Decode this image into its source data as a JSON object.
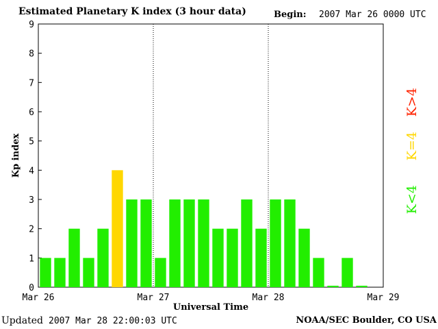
{
  "header": {
    "title": "Estimated Planetary K index (3 hour data)",
    "begin_label": "Begin:",
    "begin_value": "2007 Mar 26 0000 UTC"
  },
  "footer": {
    "updated_label": "Updated",
    "updated_value": "2007 Mar 28 22:00:03 UTC",
    "source": "NOAA/SEC Boulder, CO USA"
  },
  "legend": {
    "gt4": "K>4",
    "eq4": "K=4",
    "lt4": "K<4"
  },
  "colors": {
    "lt4": "#22ee00",
    "eq4": "#ffd700",
    "gt4": "#ff2200"
  },
  "chart_data": {
    "type": "bar",
    "title": "Estimated Planetary K index (3 hour data)",
    "xlabel": "Universal Time",
    "ylabel": "Kp index",
    "ylim": [
      0,
      9
    ],
    "yticks": [
      "0",
      "1",
      "2",
      "3",
      "4",
      "5",
      "6",
      "7",
      "8",
      "9"
    ],
    "xticks": [
      "Mar 26",
      "Mar 27",
      "Mar 28",
      "Mar 29"
    ],
    "day_separators": [
      "Mar 27",
      "Mar 28"
    ],
    "interval_hours": 3,
    "values": [
      1,
      1,
      2,
      1,
      2,
      4,
      3,
      3,
      1,
      3,
      3,
      3,
      2,
      2,
      3,
      2,
      3,
      3,
      2,
      1,
      0.05,
      1,
      0.05
    ]
  }
}
